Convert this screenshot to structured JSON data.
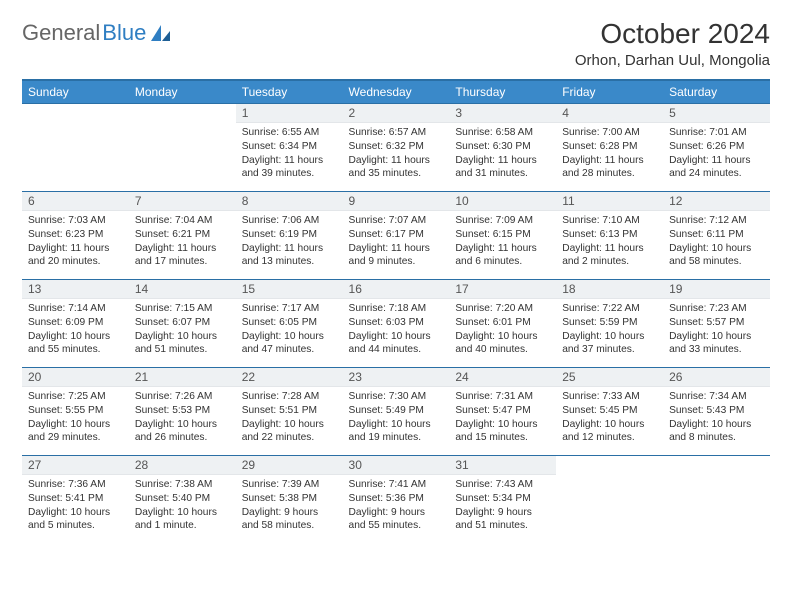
{
  "brand": {
    "part1": "General",
    "part2": "Blue"
  },
  "title": "October 2024",
  "location": "Orhon, Darhan Uul, Mongolia",
  "colors": {
    "header_bg": "#3a89c9",
    "header_border_top": "#2a6fa5",
    "row_border": "#2a6fa5",
    "daynum_bg": "#eef1f3",
    "text": "#333333",
    "logo_blue": "#2f7ec2"
  },
  "dayHeaders": [
    "Sunday",
    "Monday",
    "Tuesday",
    "Wednesday",
    "Thursday",
    "Friday",
    "Saturday"
  ],
  "weeks": [
    [
      null,
      null,
      {
        "n": "1",
        "sunrise": "6:55 AM",
        "sunset": "6:34 PM",
        "daylight": "11 hours and 39 minutes."
      },
      {
        "n": "2",
        "sunrise": "6:57 AM",
        "sunset": "6:32 PM",
        "daylight": "11 hours and 35 minutes."
      },
      {
        "n": "3",
        "sunrise": "6:58 AM",
        "sunset": "6:30 PM",
        "daylight": "11 hours and 31 minutes."
      },
      {
        "n": "4",
        "sunrise": "7:00 AM",
        "sunset": "6:28 PM",
        "daylight": "11 hours and 28 minutes."
      },
      {
        "n": "5",
        "sunrise": "7:01 AM",
        "sunset": "6:26 PM",
        "daylight": "11 hours and 24 minutes."
      }
    ],
    [
      {
        "n": "6",
        "sunrise": "7:03 AM",
        "sunset": "6:23 PM",
        "daylight": "11 hours and 20 minutes."
      },
      {
        "n": "7",
        "sunrise": "7:04 AM",
        "sunset": "6:21 PM",
        "daylight": "11 hours and 17 minutes."
      },
      {
        "n": "8",
        "sunrise": "7:06 AM",
        "sunset": "6:19 PM",
        "daylight": "11 hours and 13 minutes."
      },
      {
        "n": "9",
        "sunrise": "7:07 AM",
        "sunset": "6:17 PM",
        "daylight": "11 hours and 9 minutes."
      },
      {
        "n": "10",
        "sunrise": "7:09 AM",
        "sunset": "6:15 PM",
        "daylight": "11 hours and 6 minutes."
      },
      {
        "n": "11",
        "sunrise": "7:10 AM",
        "sunset": "6:13 PM",
        "daylight": "11 hours and 2 minutes."
      },
      {
        "n": "12",
        "sunrise": "7:12 AM",
        "sunset": "6:11 PM",
        "daylight": "10 hours and 58 minutes."
      }
    ],
    [
      {
        "n": "13",
        "sunrise": "7:14 AM",
        "sunset": "6:09 PM",
        "daylight": "10 hours and 55 minutes."
      },
      {
        "n": "14",
        "sunrise": "7:15 AM",
        "sunset": "6:07 PM",
        "daylight": "10 hours and 51 minutes."
      },
      {
        "n": "15",
        "sunrise": "7:17 AM",
        "sunset": "6:05 PM",
        "daylight": "10 hours and 47 minutes."
      },
      {
        "n": "16",
        "sunrise": "7:18 AM",
        "sunset": "6:03 PM",
        "daylight": "10 hours and 44 minutes."
      },
      {
        "n": "17",
        "sunrise": "7:20 AM",
        "sunset": "6:01 PM",
        "daylight": "10 hours and 40 minutes."
      },
      {
        "n": "18",
        "sunrise": "7:22 AM",
        "sunset": "5:59 PM",
        "daylight": "10 hours and 37 minutes."
      },
      {
        "n": "19",
        "sunrise": "7:23 AM",
        "sunset": "5:57 PM",
        "daylight": "10 hours and 33 minutes."
      }
    ],
    [
      {
        "n": "20",
        "sunrise": "7:25 AM",
        "sunset": "5:55 PM",
        "daylight": "10 hours and 29 minutes."
      },
      {
        "n": "21",
        "sunrise": "7:26 AM",
        "sunset": "5:53 PM",
        "daylight": "10 hours and 26 minutes."
      },
      {
        "n": "22",
        "sunrise": "7:28 AM",
        "sunset": "5:51 PM",
        "daylight": "10 hours and 22 minutes."
      },
      {
        "n": "23",
        "sunrise": "7:30 AM",
        "sunset": "5:49 PM",
        "daylight": "10 hours and 19 minutes."
      },
      {
        "n": "24",
        "sunrise": "7:31 AM",
        "sunset": "5:47 PM",
        "daylight": "10 hours and 15 minutes."
      },
      {
        "n": "25",
        "sunrise": "7:33 AM",
        "sunset": "5:45 PM",
        "daylight": "10 hours and 12 minutes."
      },
      {
        "n": "26",
        "sunrise": "7:34 AM",
        "sunset": "5:43 PM",
        "daylight": "10 hours and 8 minutes."
      }
    ],
    [
      {
        "n": "27",
        "sunrise": "7:36 AM",
        "sunset": "5:41 PM",
        "daylight": "10 hours and 5 minutes."
      },
      {
        "n": "28",
        "sunrise": "7:38 AM",
        "sunset": "5:40 PM",
        "daylight": "10 hours and 1 minute."
      },
      {
        "n": "29",
        "sunrise": "7:39 AM",
        "sunset": "5:38 PM",
        "daylight": "9 hours and 58 minutes."
      },
      {
        "n": "30",
        "sunrise": "7:41 AM",
        "sunset": "5:36 PM",
        "daylight": "9 hours and 55 minutes."
      },
      {
        "n": "31",
        "sunrise": "7:43 AM",
        "sunset": "5:34 PM",
        "daylight": "9 hours and 51 minutes."
      },
      null,
      null
    ]
  ],
  "labels": {
    "sunrise": "Sunrise:",
    "sunset": "Sunset:",
    "daylight": "Daylight:"
  }
}
